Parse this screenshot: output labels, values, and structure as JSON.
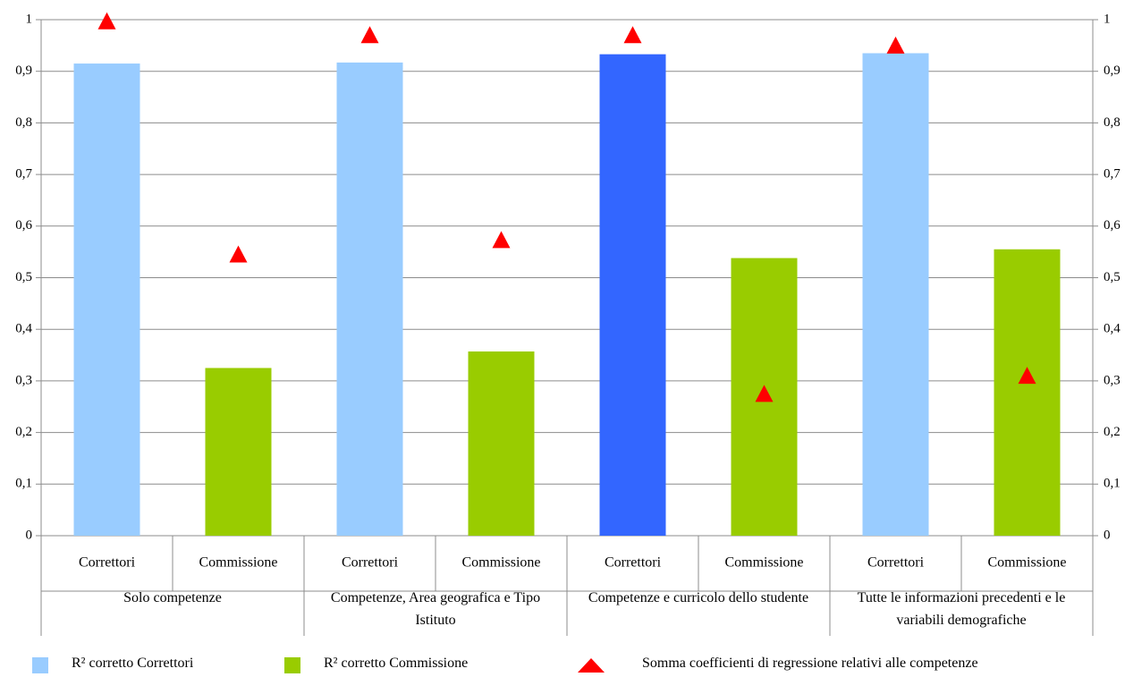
{
  "chart_data": {
    "type": "bar",
    "categories": [
      "Correttori",
      "Commissione",
      "Correttori",
      "Commissione",
      "Correttori",
      "Commissione",
      "Correttori",
      "Commissione"
    ],
    "groups": [
      "Solo competenze",
      "Competenze, Area geografica e Tipo Istituto",
      "Competenze e curricolo dello studente",
      "Tutte le informazioni precedenti e le variabili demografiche"
    ],
    "series": [
      {
        "name": "R² corretto Correttori",
        "color": "#99ccff",
        "values": [
          0.915,
          null,
          0.917,
          null,
          0.933,
          null,
          0.935,
          null
        ],
        "colors": [
          "#99ccff",
          null,
          "#99ccff",
          null,
          "#3366ff",
          null,
          "#99ccff",
          null
        ]
      },
      {
        "name": "R² corretto Commissione",
        "color": "#99cc00",
        "values": [
          null,
          0.325,
          null,
          0.357,
          null,
          0.538,
          null,
          0.555
        ]
      },
      {
        "name": "Somma coefficienti di regressione relativi alle competenze",
        "color": "#ff0000",
        "type": "triangle",
        "axis": "y2",
        "values": [
          0.997,
          0.545,
          0.97,
          0.573,
          0.97,
          0.275,
          0.95,
          0.31
        ]
      }
    ],
    "ylim": [
      0,
      1
    ],
    "yticks": [
      0,
      {
        "value": 0.1,
        "label": "0,1"
      },
      {
        "value": 0.2,
        "label": "0,2"
      },
      {
        "value": 0.3,
        "label": "0,3"
      },
      {
        "value": 0.4,
        "label": "0,4"
      },
      {
        "value": 0.5,
        "label": "0,5"
      },
      {
        "value": 0.6,
        "label": "0,6"
      },
      {
        "value": 0.7,
        "label": "0,7"
      },
      {
        "value": 0.8,
        "label": "0,8"
      },
      {
        "value": 0.9,
        "label": "0,9"
      },
      1
    ],
    "y2lim": [
      0,
      1
    ],
    "y2ticks": [
      0,
      {
        "value": 0.1,
        "label": "0,1"
      },
      {
        "value": 0.2,
        "label": "0,2"
      },
      {
        "value": 0.3,
        "label": "0,3"
      },
      {
        "value": 0.4,
        "label": "0,4"
      },
      {
        "value": 0.5,
        "label": "0,5"
      },
      {
        "value": 0.6,
        "label": "0,6"
      },
      {
        "value": 0.7,
        "label": "0,7"
      },
      {
        "value": 0.8,
        "label": "0,8"
      },
      {
        "value": 0.9,
        "label": "0,9"
      },
      1
    ],
    "grid": true
  }
}
